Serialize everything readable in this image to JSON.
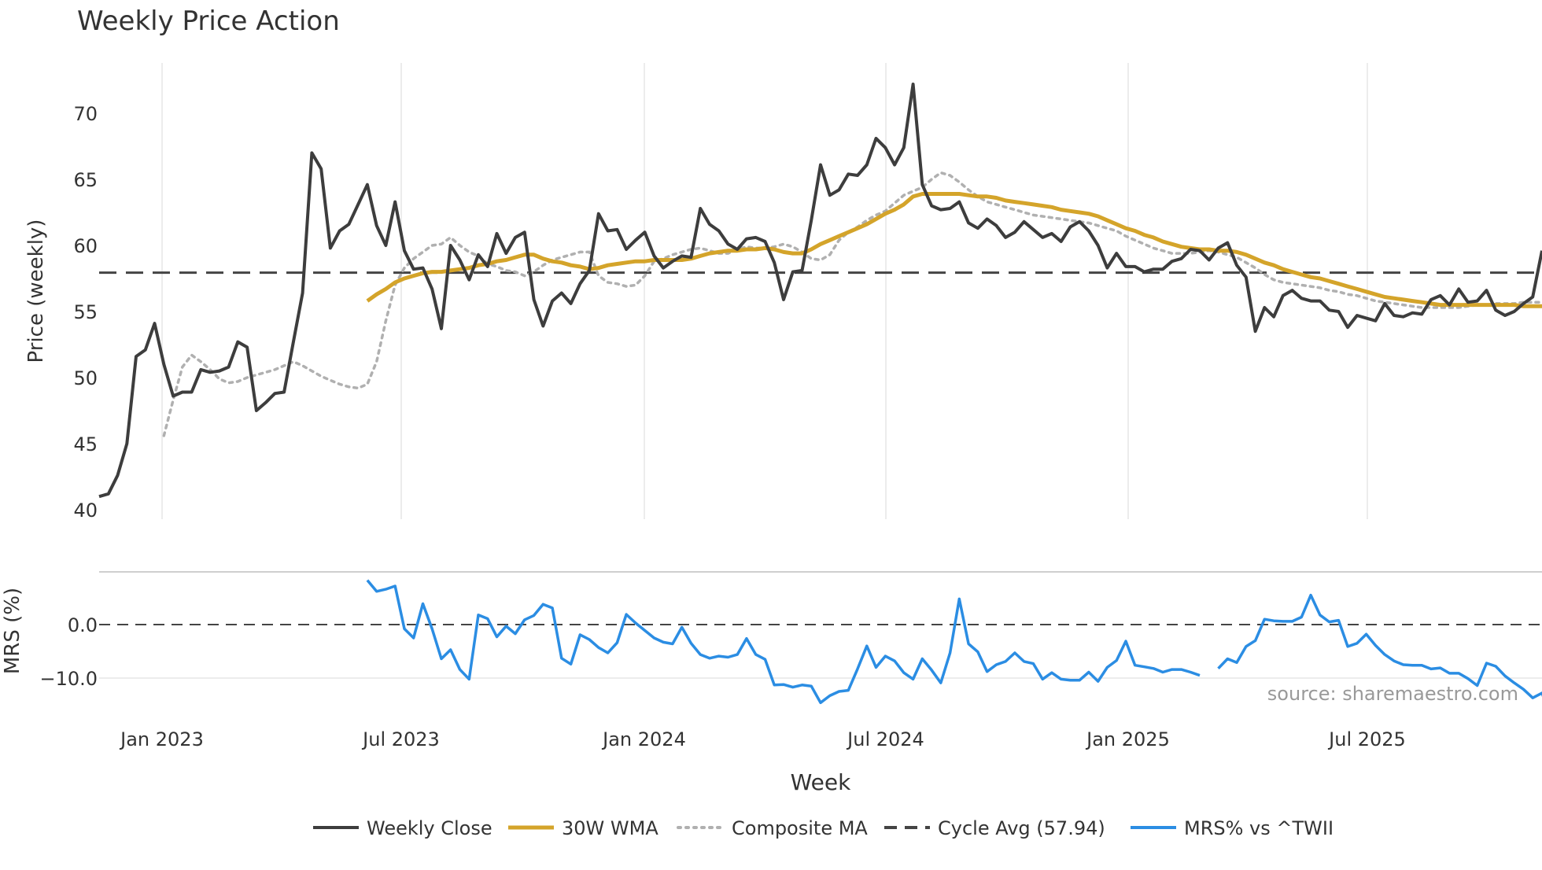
{
  "chart_data": {
    "type": "line",
    "title": "Weekly Price Action",
    "xlabel": "Week",
    "source_note": "source: sharemaestro.com",
    "x_ticks": [
      "Jan 2023",
      "Jul 2023",
      "Jan 2024",
      "Jul 2024",
      "Jan 2025",
      "Jul 2025"
    ],
    "colors": {
      "close": "#3d3d3d",
      "wma": "#d4a42a",
      "composite": "#b0b0b0",
      "cycle": "#444444",
      "mrs": "#2b8de3",
      "grid": "#ececec",
      "text": "#333333",
      "source": "#999999"
    },
    "price_panel": {
      "ylabel": "Price (weekly)",
      "ylim": [
        40,
        73
      ],
      "y_ticks": [
        "40",
        "45",
        "50",
        "55",
        "60",
        "65",
        "70"
      ],
      "cycle_avg": 57.94,
      "series": {
        "weekly_close": [
          41,
          41.2,
          42.6,
          45,
          51.6,
          52.1,
          54.1,
          51,
          48.6,
          48.9,
          48.9,
          50.6,
          50.4,
          50.5,
          50.8,
          52.7,
          52.3,
          47.5,
          48.1,
          48.8,
          48.9,
          52.7,
          56.4,
          67,
          65.8,
          59.8,
          61.1,
          61.6,
          63.1,
          64.6,
          61.5,
          60,
          63.3,
          59.6,
          58.2,
          58.3,
          56.7,
          53.7,
          60,
          58.9,
          57.4,
          59.3,
          58.4,
          60.9,
          59.4,
          60.6,
          61,
          55.9,
          53.9,
          55.8,
          56.4,
          55.6,
          57.1,
          58.1,
          62.4,
          61.1,
          61.2,
          59.7,
          60.4,
          61,
          59.2,
          58.3,
          58.8,
          59.2,
          59.1,
          62.8,
          61.6,
          61.1,
          60.1,
          59.7,
          60.5,
          60.6,
          60.3,
          58.7,
          55.9,
          58,
          58.1,
          61.9,
          66.1,
          63.8,
          64.2,
          65.4,
          65.3,
          66.1,
          68.1,
          67.4,
          66.1,
          67.4,
          72.2,
          64.6,
          63,
          62.7,
          62.8,
          63.3,
          61.7,
          61.3,
          62,
          61.5,
          60.6,
          61,
          61.8,
          61.2,
          60.6,
          60.9,
          60.3,
          61.4,
          61.8,
          61.1,
          60,
          58.3,
          59.4,
          58.4,
          58.4,
          58,
          58.2,
          58.2,
          58.8,
          59,
          59.7,
          59.6,
          58.9,
          59.8,
          60.2,
          58.5,
          57.6,
          53.5,
          55.3,
          54.6,
          56.2,
          56.6,
          56,
          55.8,
          55.8,
          55.1,
          55,
          53.8,
          54.7,
          54.5,
          54.3,
          55.6,
          54.7,
          54.6,
          54.9,
          54.8,
          55.9,
          56.2,
          55.5,
          56.7,
          55.7,
          55.8,
          56.6,
          55.1,
          54.7,
          55,
          55.6,
          56.1,
          59.6
        ],
        "wma_30": [
          null,
          null,
          null,
          null,
          null,
          null,
          null,
          null,
          null,
          null,
          null,
          null,
          null,
          null,
          null,
          null,
          null,
          null,
          null,
          null,
          null,
          null,
          null,
          null,
          null,
          null,
          null,
          null,
          null,
          55.8,
          56.3,
          56.7,
          57.2,
          57.5,
          57.7,
          57.9,
          58,
          58,
          58.1,
          58.2,
          58.3,
          58.5,
          58.6,
          58.8,
          58.9,
          59.1,
          59.3,
          59.3,
          59,
          58.8,
          58.7,
          58.5,
          58.4,
          58.2,
          58.3,
          58.5,
          58.6,
          58.7,
          58.8,
          58.8,
          58.9,
          58.9,
          58.9,
          58.9,
          59,
          59.2,
          59.4,
          59.5,
          59.6,
          59.6,
          59.7,
          59.7,
          59.8,
          59.7,
          59.5,
          59.4,
          59.4,
          59.7,
          60.1,
          60.4,
          60.7,
          61,
          61.3,
          61.6,
          62,
          62.4,
          62.7,
          63.1,
          63.7,
          63.9,
          63.9,
          63.9,
          63.9,
          63.9,
          63.8,
          63.7,
          63.7,
          63.6,
          63.4,
          63.3,
          63.2,
          63.1,
          63,
          62.9,
          62.7,
          62.6,
          62.5,
          62.4,
          62.2,
          61.9,
          61.6,
          61.3,
          61.1,
          60.8,
          60.6,
          60.3,
          60.1,
          59.9,
          59.8,
          59.7,
          59.7,
          59.6,
          59.6,
          59.5,
          59.3,
          59,
          58.7,
          58.5,
          58.2,
          58,
          57.8,
          57.6,
          57.5,
          57.3,
          57.1,
          56.9,
          56.7,
          56.5,
          56.3,
          56.1,
          56,
          55.9,
          55.8,
          55.7,
          55.6,
          55.5,
          55.5,
          55.5,
          55.5,
          55.5,
          55.5,
          55.5,
          55.5,
          55.5,
          55.4,
          55.4,
          55.4,
          55.4,
          55.7
        ],
        "composite_ma": [
          null,
          null,
          null,
          null,
          null,
          null,
          null,
          45.6,
          48.3,
          50.8,
          51.7,
          51.2,
          50.6,
          49.9,
          49.6,
          49.7,
          50,
          50.2,
          50.4,
          50.6,
          50.9,
          51.2,
          50.9,
          50.5,
          50.1,
          49.8,
          49.5,
          49.3,
          49.2,
          49.5,
          51.2,
          54.3,
          57,
          58.3,
          59,
          59.5,
          60,
          60.1,
          60.6,
          60,
          59.5,
          59.2,
          58.6,
          58.4,
          58.1,
          58,
          57.7,
          58,
          58.5,
          58.9,
          59.1,
          59.3,
          59.5,
          59.5,
          57.7,
          57.2,
          57.1,
          56.9,
          57,
          57.7,
          58.8,
          59,
          59.3,
          59.5,
          59.7,
          59.8,
          59.6,
          59.4,
          59.4,
          59.7,
          59.9,
          59.8,
          59.8,
          59.9,
          60.1,
          59.9,
          59.5,
          59,
          58.9,
          59.3,
          60.4,
          61,
          61.4,
          61.9,
          62.3,
          62.6,
          63.2,
          63.8,
          64.1,
          64.4,
          65,
          65.5,
          65.3,
          64.8,
          64.2,
          63.7,
          63.3,
          63.1,
          62.9,
          62.7,
          62.5,
          62.3,
          62.2,
          62.1,
          62,
          61.9,
          61.8,
          61.7,
          61.5,
          61.3,
          61.1,
          60.7,
          60.4,
          60.1,
          59.8,
          59.6,
          59.4,
          59.4,
          59.4,
          59.5,
          59.6,
          59.5,
          59.3,
          59.1,
          58.7,
          58.3,
          57.8,
          57.4,
          57.2,
          57.1,
          57,
          56.9,
          56.8,
          56.6,
          56.5,
          56.3,
          56.2,
          56,
          55.8,
          55.7,
          55.6,
          55.5,
          55.4,
          55.3,
          55.3,
          55.3,
          55.3,
          55.3,
          55.4,
          55.5,
          55.5,
          55.6,
          55.6,
          55.6,
          55.7,
          55.7,
          55.7,
          55.7,
          55.8,
          55.8,
          56
        ]
      }
    },
    "mrs_panel": {
      "ylabel": "MRS (%)",
      "ylim": [
        -18,
        10
      ],
      "y_ticks": [
        "0.0",
        "−10.0"
      ],
      "y_tick_values": [
        0,
        -10
      ],
      "series": {
        "mrs_pct": [
          null,
          null,
          null,
          null,
          null,
          null,
          null,
          null,
          null,
          null,
          null,
          null,
          null,
          null,
          null,
          null,
          null,
          null,
          null,
          null,
          null,
          null,
          null,
          null,
          null,
          null,
          null,
          null,
          null,
          8.3,
          6.2,
          6.6,
          7.2,
          -0.8,
          -2.5,
          3.9,
          -0.8,
          -6.4,
          -4.7,
          -8.4,
          -10.2,
          1.8,
          1.1,
          -2.3,
          -0.3,
          -1.7,
          0.9,
          1.7,
          3.8,
          3.1,
          -6.3,
          -7.4,
          -1.9,
          -2.8,
          -4.3,
          -5.3,
          -3.4,
          1.9,
          0.3,
          -1.1,
          -2.5,
          -3.3,
          -3.6,
          -0.5,
          -3.5,
          -5.6,
          -6.3,
          -5.9,
          -6.1,
          -5.6,
          -2.6,
          -5.6,
          -6.5,
          -11.3,
          -11.2,
          -11.7,
          -11.3,
          -11.5,
          -14.6,
          -13.3,
          -12.5,
          -12.3,
          -8.3,
          -4,
          -8,
          -5.9,
          -6.8,
          -9,
          -10.2,
          -6.4,
          -8.5,
          -10.9,
          -5.3,
          4.8,
          -3.6,
          -5.1,
          -8.8,
          -7.5,
          -6.9,
          -5.3,
          -6.9,
          -7.3,
          -10.2,
          -9,
          -10.2,
          -10.4,
          -10.4,
          -8.9,
          -10.6,
          -8,
          -6.7,
          -3.1,
          -7.6,
          -7.9,
          -8.2,
          -8.9,
          -8.4,
          -8.4,
          -8.9,
          -9.5,
          null,
          -8.2,
          -6.4,
          -7.1,
          -4.1,
          -3,
          1,
          0.7,
          0.6,
          0.6,
          1.4,
          5.5,
          1.8,
          0.5,
          0.8,
          -4.1,
          -3.5,
          -1.8,
          -3.9,
          -5.6,
          -6.8,
          -7.5,
          -7.6,
          -7.6,
          -8.3,
          -8.1,
          -9.1,
          -9.1,
          -10.1,
          -11.4,
          -7.2,
          -7.8,
          -9.6,
          -10.9,
          -12.1,
          -13.7,
          -12.8,
          -17.5,
          -17.5,
          -17.8,
          -16.9,
          -15.8,
          -9.1
        ]
      }
    },
    "legend": [
      {
        "key": "close",
        "label": "Weekly Close",
        "style": "solid"
      },
      {
        "key": "wma",
        "label": "30W WMA",
        "style": "solid"
      },
      {
        "key": "composite",
        "label": "Composite MA",
        "style": "dotted"
      },
      {
        "key": "cycle",
        "label": "Cycle Avg (57.94)",
        "style": "dashed"
      },
      {
        "key": "mrs",
        "label": "MRS% vs ^TWII",
        "style": "solid"
      }
    ]
  }
}
